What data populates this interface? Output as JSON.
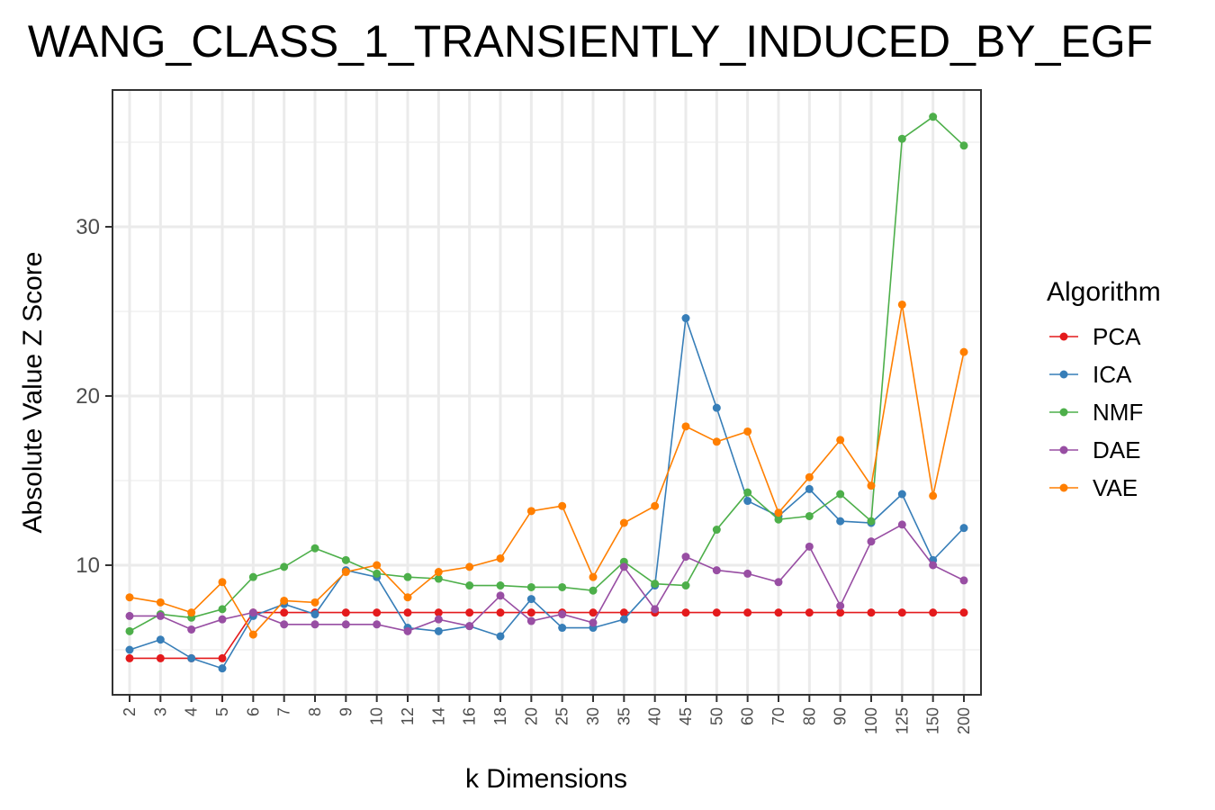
{
  "chart_data": {
    "type": "line",
    "title": "WANG_CLASS_1_TRANSIENTLY_INDUCED_BY_EGF",
    "xlabel": "k Dimensions",
    "ylabel": "Absolute Value Z Score",
    "categories": [
      "2",
      "3",
      "4",
      "5",
      "6",
      "7",
      "8",
      "9",
      "10",
      "12",
      "14",
      "16",
      "18",
      "20",
      "25",
      "30",
      "35",
      "40",
      "45",
      "50",
      "60",
      "70",
      "80",
      "90",
      "100",
      "125",
      "150",
      "200"
    ],
    "ylim": [
      2.5,
      37.5
    ],
    "yticks": [
      10,
      20,
      30
    ],
    "grid": true,
    "legend": {
      "title": "Algorithm",
      "position": "right"
    },
    "series": [
      {
        "name": "PCA",
        "color": "#e41a1c",
        "values": [
          4.5,
          4.5,
          4.5,
          4.5,
          7.2,
          7.2,
          7.2,
          7.2,
          7.2,
          7.2,
          7.2,
          7.2,
          7.2,
          7.2,
          7.2,
          7.2,
          7.2,
          7.2,
          7.2,
          7.2,
          7.2,
          7.2,
          7.2,
          7.2,
          7.2,
          7.2,
          7.2,
          7.2
        ]
      },
      {
        "name": "ICA",
        "color": "#377eb8",
        "values": [
          5.0,
          5.6,
          4.5,
          3.9,
          7.0,
          7.7,
          7.1,
          9.7,
          9.3,
          6.3,
          6.1,
          6.4,
          5.8,
          8.0,
          6.3,
          6.3,
          6.8,
          8.8,
          24.6,
          19.3,
          13.8,
          12.9,
          14.5,
          12.6,
          12.5,
          14.2,
          10.3,
          12.2
        ]
      },
      {
        "name": "NMF",
        "color": "#4daf4a",
        "values": [
          6.1,
          7.1,
          6.9,
          7.4,
          9.3,
          9.9,
          11.0,
          10.3,
          9.5,
          9.3,
          9.2,
          8.8,
          8.8,
          8.7,
          8.7,
          8.5,
          10.2,
          8.9,
          8.8,
          12.1,
          14.3,
          12.7,
          12.9,
          14.2,
          12.6,
          35.2,
          36.5,
          34.8
        ]
      },
      {
        "name": "DAE",
        "color": "#984ea3",
        "values": [
          7.0,
          7.0,
          6.2,
          6.8,
          7.2,
          6.5,
          6.5,
          6.5,
          6.5,
          6.1,
          6.8,
          6.4,
          8.2,
          6.7,
          7.1,
          6.6,
          9.9,
          7.4,
          10.5,
          9.7,
          9.5,
          9.0,
          11.1,
          7.6,
          11.4,
          12.4,
          10.0,
          9.1
        ]
      },
      {
        "name": "VAE",
        "color": "#ff7f00",
        "values": [
          8.1,
          7.8,
          7.2,
          9.0,
          5.9,
          7.9,
          7.8,
          9.6,
          10.0,
          8.1,
          9.6,
          9.9,
          10.4,
          13.2,
          13.5,
          9.3,
          12.5,
          13.5,
          18.2,
          17.3,
          17.9,
          13.1,
          15.2,
          17.4,
          14.7,
          25.4,
          14.1,
          22.6
        ]
      }
    ]
  }
}
